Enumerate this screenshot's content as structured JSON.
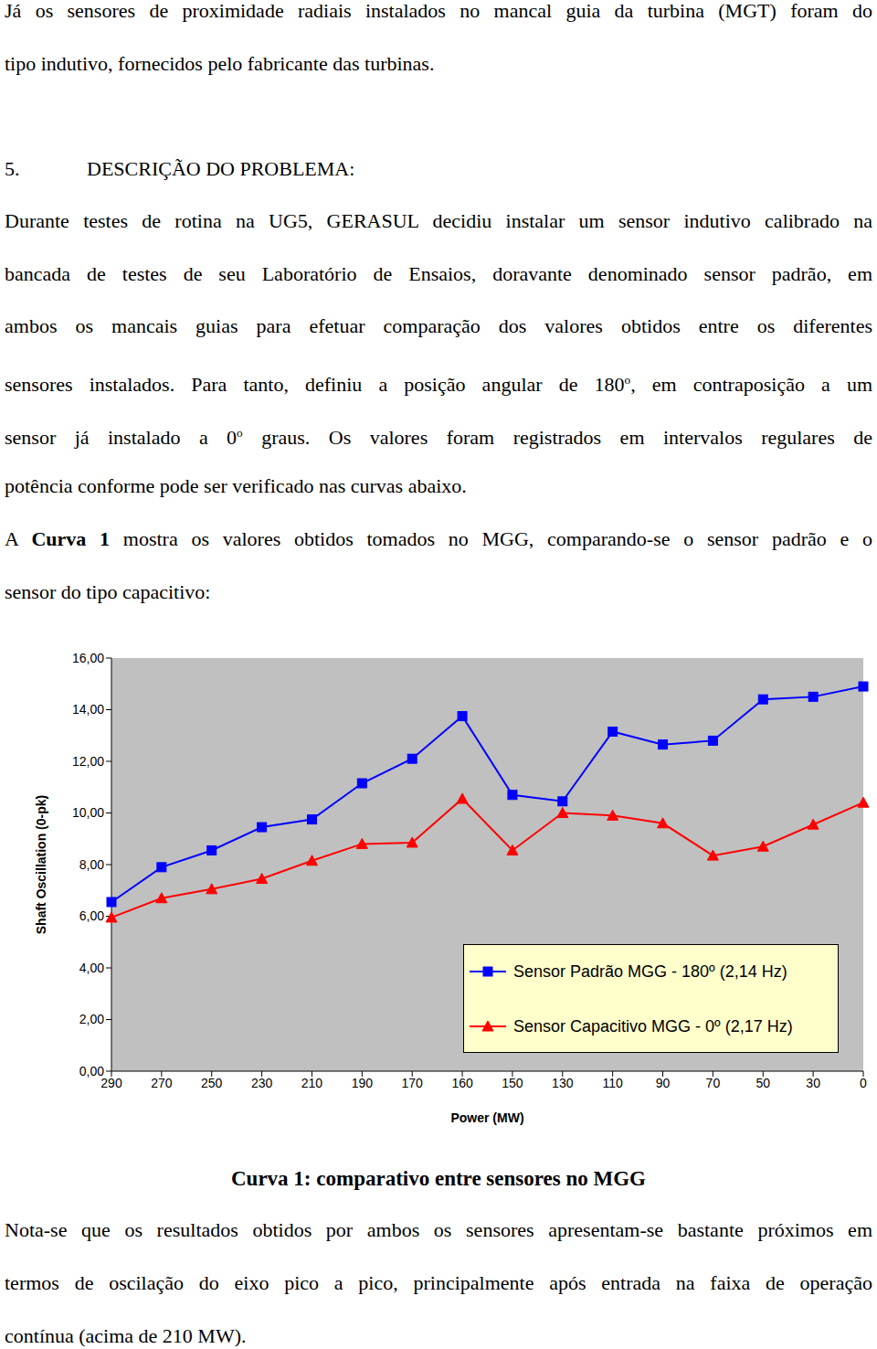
{
  "intro": [
    [
      "Já os sensores de proximidade radiais instalados no mancal guia da turbina (MGT) foram do"
    ],
    [
      "tipo indutivo, fornecidos pelo fabricante das turbinas."
    ]
  ],
  "heading": {
    "number": "5.",
    "text": "DESCRIÇÃO DO PROBLEMA:"
  },
  "paragraph1": [
    [
      "Durante testes de rotina na UG5, GERASUL decidiu instalar um sensor indutivo calibrado na"
    ],
    [
      "bancada de testes de seu Laboratório de Ensaios, doravante denominado sensor padrão, em"
    ],
    [
      "ambos os mancais guias para efetuar comparação dos valores obtidos entre os diferentes"
    ],
    [
      "sensores instalados. Para tanto, definiu a posição angular de 180",
      {
        "text": "o",
        "sup": true
      },
      ", em contraposição a um"
    ],
    [
      "sensor já instalado a 0",
      {
        "text": "o",
        "sup": true
      },
      " graus. Os valores foram registrados em intervalos regulares de"
    ],
    [
      "potência conforme pode ser verificado nas curvas abaixo."
    ]
  ],
  "paragraph2": [
    [
      "A ",
      {
        "text": "Curva 1",
        "bold": true
      },
      " mostra os valores obtidos tomados no MGG, comparando-se o sensor padrão e o"
    ],
    [
      "sensor do tipo capacitivo:"
    ]
  ],
  "chart_data": {
    "type": "line",
    "x_label": "Power (MW)",
    "y_label": "Shaft Oscillation (0-pk)",
    "categories": [
      "290",
      "270",
      "250",
      "230",
      "210",
      "190",
      "170",
      "160",
      "150",
      "130",
      "110",
      "90",
      "70",
      "50",
      "30",
      "0"
    ],
    "series": [
      {
        "name": "Sensor Padrão MGG - 180º (2,14 Hz)",
        "color": "#0000ff",
        "marker": "square",
        "values": [
          6.55,
          7.9,
          8.55,
          9.45,
          9.75,
          11.15,
          12.1,
          13.75,
          10.7,
          10.45,
          13.15,
          12.65,
          12.8,
          14.4,
          14.5,
          14.9
        ]
      },
      {
        "name": "Sensor Capacitivo MGG - 0º (2,17 Hz)",
        "color": "#ff0000",
        "marker": "triangle",
        "values": [
          5.95,
          6.7,
          7.05,
          7.45,
          8.15,
          8.8,
          8.85,
          10.55,
          8.55,
          10.0,
          9.9,
          9.6,
          8.35,
          8.7,
          9.55,
          10.4
        ]
      }
    ],
    "ylim": [
      0,
      16
    ],
    "yticks": [
      {
        "value": 0,
        "label": "0,00"
      },
      {
        "value": 2,
        "label": "2,00"
      },
      {
        "value": 4,
        "label": "4,00"
      },
      {
        "value": 6,
        "label": "6,00"
      },
      {
        "value": 8,
        "label": "8,00"
      },
      {
        "value": 10,
        "label": "10,00"
      },
      {
        "value": 12,
        "label": "12,00"
      },
      {
        "value": 14,
        "label": "14,00"
      },
      {
        "value": 16,
        "label": "16,00"
      }
    ],
    "grid": false,
    "legend": "lower right"
  },
  "caption": "Curva 1: comparativo entre sensores no MGG",
  "paragraph3": [
    [
      "Nota-se que os resultados obtidos por ambos os sensores apresentam-se bastante próximos em"
    ],
    [
      "termos de oscilação do eixo pico a pico, principalmente após entrada na faixa de operação"
    ],
    [
      "contínua (acima de 210 MW)."
    ]
  ]
}
